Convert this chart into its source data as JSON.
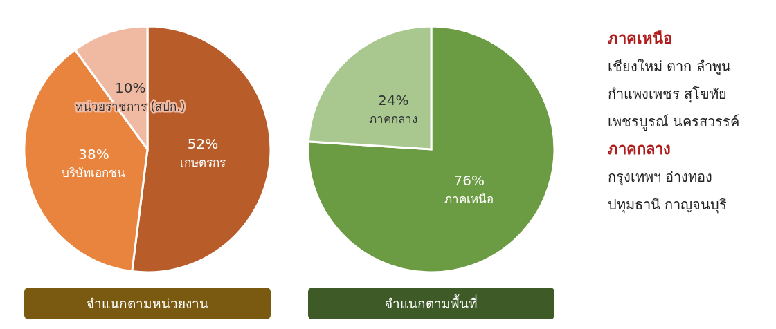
{
  "chart_data": [
    {
      "type": "pie",
      "title": "จำแนกตามหน่วยงาน",
      "categories": [
        "เกษตรกร",
        "บริษัทเอกชน",
        "หน่วยราชการ (สปก.)"
      ],
      "values": [
        52,
        38,
        10
      ],
      "colors": [
        "#b85c2a",
        "#e8843e",
        "#f0b9a2"
      ],
      "value_labels": [
        "52%",
        "38%",
        "10%"
      ]
    },
    {
      "type": "pie",
      "title": "จำแนกตามพื้นที่",
      "categories": [
        "ภาคเหนือ",
        "ภาคกลาง"
      ],
      "values": [
        76,
        24
      ],
      "colors": [
        "#6b9b42",
        "#a9c890"
      ],
      "value_labels": [
        "76%",
        "24%"
      ]
    },
    {
      "type": "other",
      "title": "ภาคเหนือ",
      "annotations": [
        "เชียงใหม่ ตาก ลำพูน",
        "กำแพงเพชร สุโขทัย",
        "เพชรบูรณ์ นครสวรรค์"
      ]
    },
    {
      "type": "other",
      "title": "ภาคกลาง",
      "annotations": [
        "กรุงเทพฯ อ่างทอง",
        "ปทุมธานี กาญจนบุรี"
      ]
    }
  ]
}
